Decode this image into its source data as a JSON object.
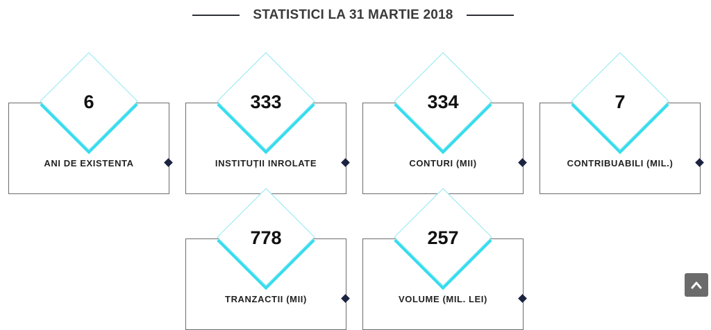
{
  "section": {
    "title": "STATISTICI LA 31 MARTIE 2018"
  },
  "stats": [
    {
      "value": "6",
      "label": "ANI DE EXISTENTA"
    },
    {
      "value": "333",
      "label": "INSTITUȚII INROLATE"
    },
    {
      "value": "334",
      "label": "CONTURI (MII)"
    },
    {
      "value": "7",
      "label": "CONTRIBUABILI (MIL.)"
    },
    {
      "value": "778",
      "label": "TRANZACTII (MII)"
    },
    {
      "value": "257",
      "label": "VOLUME (MIL. LEI)"
    }
  ],
  "colors": {
    "accent": "#36dcee",
    "marker": "#1c2340",
    "border": "#6b6b6b",
    "scroll_button": "#6b6b6b"
  },
  "icons": {
    "scroll_top": "chevron-up-icon"
  }
}
